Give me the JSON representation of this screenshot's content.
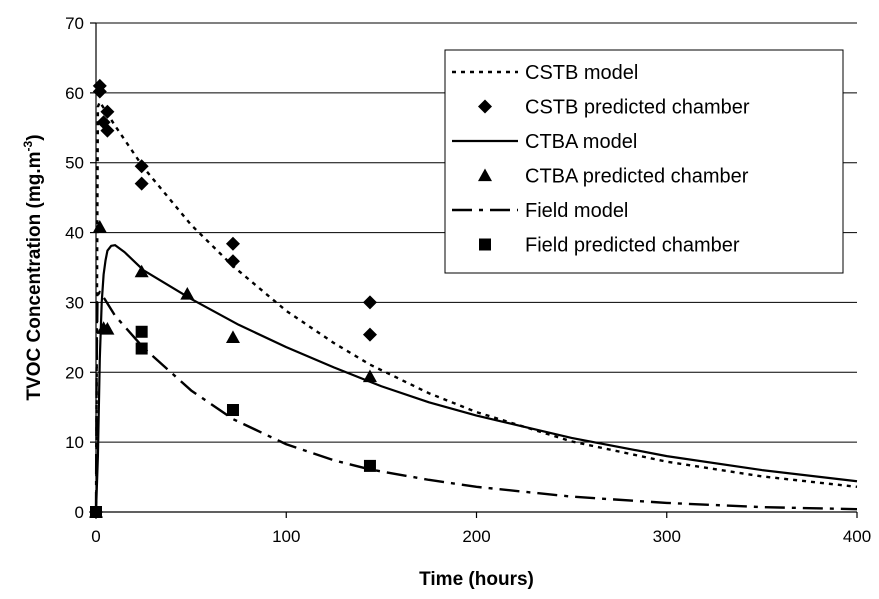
{
  "chart_data": {
    "type": "scatter",
    "title": "",
    "xlabel": "Time  (hours)",
    "ylabel_main": "TVOC Concentration  (mg.m",
    "ylabel_sup": "-3",
    "ylabel_close": ")",
    "xlim": [
      0,
      400
    ],
    "ylim": [
      0,
      70
    ],
    "x_ticks": [
      0,
      100,
      200,
      300,
      400
    ],
    "y_ticks": [
      0,
      10,
      20,
      30,
      40,
      50,
      60,
      70
    ],
    "x_tick_labels": [
      "0",
      "100",
      "200",
      "300",
      "400"
    ],
    "y_tick_labels": [
      "0",
      "10",
      "20",
      "30",
      "40",
      "50",
      "60",
      "70"
    ],
    "grid": "horizontal",
    "legend_position": "top-right",
    "series": [
      {
        "name": "CSTB model",
        "kind": "line",
        "style": "dotted",
        "marker": "none",
        "points": [
          [
            0,
            0
          ],
          [
            0.1,
            0
          ],
          [
            0.5,
            30
          ],
          [
            1,
            58
          ],
          [
            2,
            58.7
          ],
          [
            10,
            55.3
          ],
          [
            25,
            49.3
          ],
          [
            50,
            41.1
          ],
          [
            72,
            35.2
          ],
          [
            100,
            28.8
          ],
          [
            125,
            24.2
          ],
          [
            144,
            21.1
          ],
          [
            175,
            17.0
          ],
          [
            200,
            14.3
          ],
          [
            250,
            10.1
          ],
          [
            300,
            7.2
          ],
          [
            350,
            5.1
          ],
          [
            400,
            3.6
          ]
        ]
      },
      {
        "name": "CSTB predicted chamber",
        "kind": "scatter",
        "marker": "diamond",
        "points": [
          [
            0,
            0
          ],
          [
            2,
            61
          ],
          [
            2,
            60.2
          ],
          [
            4,
            55.8
          ],
          [
            6,
            57.3
          ],
          [
            6,
            54.6
          ],
          [
            24,
            49.5
          ],
          [
            24,
            47
          ],
          [
            72,
            38.4
          ],
          [
            72,
            35.9
          ],
          [
            144,
            30
          ],
          [
            144,
            25.4
          ]
        ]
      },
      {
        "name": "CTBA model",
        "kind": "line",
        "style": "solid",
        "marker": "none",
        "points": [
          [
            0,
            0
          ],
          [
            1,
            8
          ],
          [
            2,
            22
          ],
          [
            3,
            30
          ],
          [
            4,
            34
          ],
          [
            5,
            36
          ],
          [
            6,
            37.4
          ],
          [
            8,
            38.1
          ],
          [
            10,
            38.2
          ],
          [
            15,
            37.2
          ],
          [
            25,
            34.6
          ],
          [
            50,
            30.5
          ],
          [
            75,
            26.8
          ],
          [
            100,
            23.6
          ],
          [
            125,
            20.7
          ],
          [
            150,
            18.0
          ],
          [
            175,
            15.7
          ],
          [
            200,
            13.8
          ],
          [
            250,
            10.6
          ],
          [
            300,
            8.0
          ],
          [
            350,
            6.0
          ],
          [
            400,
            4.4
          ]
        ]
      },
      {
        "name": "CTBA predicted chamber",
        "kind": "scatter",
        "marker": "triangle",
        "points": [
          [
            0,
            0
          ],
          [
            2,
            40.8
          ],
          [
            4,
            26.3
          ],
          [
            6,
            26.2
          ],
          [
            24,
            34.4
          ],
          [
            48,
            31.2
          ],
          [
            72,
            25
          ],
          [
            144,
            19.4
          ]
        ]
      },
      {
        "name": "Field model",
        "kind": "line",
        "style": "dashdot",
        "marker": "none",
        "points": [
          [
            0,
            0
          ],
          [
            0.3,
            20
          ],
          [
            0.8,
            31
          ],
          [
            2,
            31.5
          ],
          [
            5,
            30.3
          ],
          [
            10,
            28.1
          ],
          [
            25,
            23.5
          ],
          [
            50,
            17.4
          ],
          [
            72,
            13.3
          ],
          [
            100,
            9.7
          ],
          [
            125,
            7.4
          ],
          [
            144,
            6.1
          ],
          [
            175,
            4.6
          ],
          [
            200,
            3.6
          ],
          [
            250,
            2.2
          ],
          [
            300,
            1.3
          ],
          [
            350,
            0.7
          ],
          [
            400,
            0.4
          ]
        ]
      },
      {
        "name": "Field predicted chamber",
        "kind": "scatter",
        "marker": "square",
        "points": [
          [
            0,
            0
          ],
          [
            24,
            25.8
          ],
          [
            24,
            23.4
          ],
          [
            72,
            14.6
          ],
          [
            144,
            6.6
          ]
        ]
      }
    ]
  },
  "colors": {
    "axis": "#000000",
    "grid": "#000000",
    "series": "#000000",
    "background": "#ffffff"
  }
}
